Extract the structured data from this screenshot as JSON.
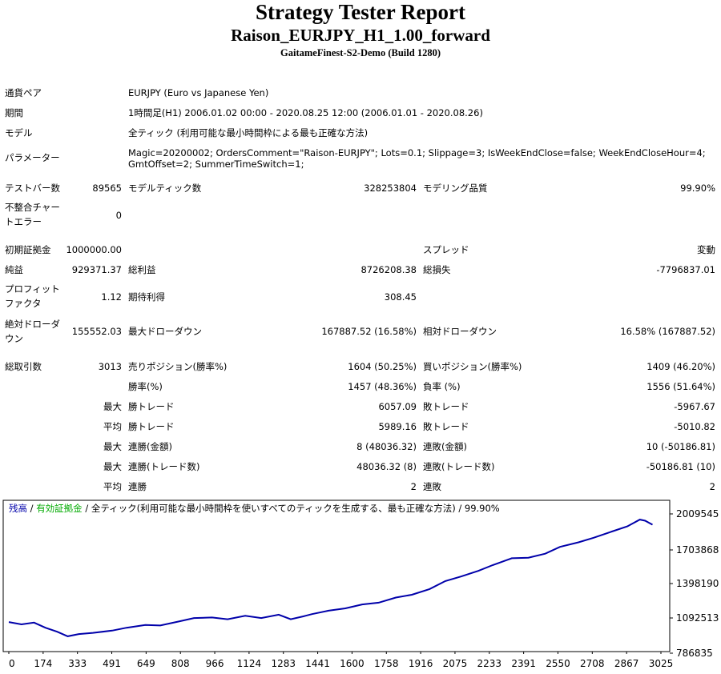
{
  "header": {
    "title": "Strategy Tester Report",
    "subtitle": "Raison_EURJPY_H1_1.00_forward",
    "server": "GaitameFinest-S2-Demo (Build 1280)"
  },
  "info": {
    "symbol_label": "通貨ペア",
    "symbol_value": "EURJPY (Euro vs Japanese Yen)",
    "period_label": "期間",
    "period_value": "1時間足(H1) 2006.01.02 00:00 - 2020.08.25 12:00 (2006.01.01 - 2020.08.26)",
    "model_label": "モデル",
    "model_value": "全ティック (利用可能な最小時間枠による最も正確な方法)",
    "params_label": "パラメーター",
    "params_value": "Magic=20200002; OrdersComment=\"Raison-EURJPY\"; Lots=0.1; Slippage=3; IsWeekEndClose=false; WeekEndCloseHour=4; GmtOffset=2; SummerTimeSwitch=1;"
  },
  "stats": {
    "bars_label": "テストバー数",
    "bars_value": "89565",
    "ticks_label": "モデルティック数",
    "ticks_value": "328253804",
    "quality_label": "モデリング品質",
    "quality_value": "99.90%",
    "mismatch_label_1": "不整合チャー",
    "mismatch_label_2": "トエラー",
    "mismatch_value": "0",
    "deposit_label": "初期証拠金",
    "deposit_value": "1000000.00",
    "spread_label": "スプレッド",
    "spread_value": "変動",
    "net_label": "純益",
    "net_value": "929371.37",
    "gross_profit_label": "総利益",
    "gross_profit_value": "8726208.38",
    "gross_loss_label": "総損失",
    "gross_loss_value": "-7796837.01",
    "pf_label_1": "プロフィット",
    "pf_label_2": "ファクタ",
    "pf_value": "1.12",
    "expected_label": "期待利得",
    "expected_value": "308.45",
    "abs_dd_label_1": "絶対ドローダ",
    "abs_dd_label_2": "ウン",
    "abs_dd_value": "155552.03",
    "max_dd_label": "最大ドローダウン",
    "max_dd_value": "167887.52 (16.58%)",
    "rel_dd_label": "相対ドローダウン",
    "rel_dd_value": "16.58% (167887.52)",
    "trades_label": "総取引数",
    "trades_value": "3013",
    "short_label": "売りポジション(勝率%)",
    "short_value": "1604 (50.25%)",
    "long_label": "買いポジション(勝率%)",
    "long_value": "1409 (46.20%)",
    "win_pct_label": "勝率(%)",
    "win_pct_value": "1457 (48.36%)",
    "loss_pct_label": "負率 (%)",
    "loss_pct_value": "1556 (51.64%)",
    "max_label": "最大",
    "avg_label": "平均",
    "largest_win_label": "勝トレード",
    "largest_win_value": "6057.09",
    "largest_loss_label": "敗トレード",
    "largest_loss_value": "-5967.67",
    "avg_win_label": "勝トレード",
    "avg_win_value": "5989.16",
    "avg_loss_label": "敗トレード",
    "avg_loss_value": "-5010.82",
    "max_cons_wins_label": "連勝(金額)",
    "max_cons_wins_value": "8 (48036.32)",
    "max_cons_losses_label": "連敗(金額)",
    "max_cons_losses_value": "10 (-50186.81)",
    "max_cons_profit_label": "連勝(トレード数)",
    "max_cons_profit_value": "48036.32 (8)",
    "max_cons_loss_label": "連敗(トレード数)",
    "max_cons_loss_value": "-50186.81 (10)",
    "avg_cons_wins_label": "連勝",
    "avg_cons_wins_value": "2",
    "avg_cons_losses_label": "連敗",
    "avg_cons_losses_value": "2"
  },
  "colors": {
    "balance": "#0000aa",
    "equity": "#00aa00",
    "legend_text": "#000000"
  },
  "chart_data": {
    "type": "line",
    "legend": {
      "balance": "残高",
      "sep1": " / ",
      "equity": "有効証拠金",
      "sep2": " / ",
      "rest": "全ティック(利用可能な最小時間枠を使いすべてのティックを生成する、最も正確な方法) / 99.90%"
    },
    "x_ticks": [
      "0",
      "174",
      "333",
      "491",
      "649",
      "808",
      "966",
      "1124",
      "1283",
      "1441",
      "1600",
      "1758",
      "1916",
      "2075",
      "2233",
      "2391",
      "2550",
      "2708",
      "2867",
      "3025"
    ],
    "y_ticks": [
      "2009545",
      "1703868",
      "1398190",
      "1092513",
      "786835"
    ],
    "xlim": [
      0,
      3100
    ],
    "ylim": [
      786835,
      2009545
    ],
    "series": [
      {
        "name": "残高",
        "x": [
          0,
          60,
          120,
          174,
          230,
          280,
          333,
          400,
          491,
          560,
          649,
          720,
          808,
          880,
          966,
          1040,
          1124,
          1200,
          1283,
          1340,
          1400,
          1441,
          1520,
          1600,
          1680,
          1758,
          1840,
          1916,
          2000,
          2075,
          2150,
          2233,
          2300,
          2391,
          2470,
          2550,
          2620,
          2708,
          2780,
          2867,
          2940,
          3000,
          3025,
          3060
        ],
        "y": [
          1060000,
          1040000,
          1055000,
          1010000,
          975000,
          935000,
          955000,
          965000,
          985000,
          1010000,
          1035000,
          1030000,
          1065000,
          1095000,
          1100000,
          1085000,
          1115000,
          1095000,
          1125000,
          1085000,
          1110000,
          1130000,
          1160000,
          1180000,
          1215000,
          1230000,
          1275000,
          1300000,
          1350000,
          1420000,
          1460000,
          1510000,
          1560000,
          1620000,
          1625000,
          1660000,
          1720000,
          1760000,
          1800000,
          1855000,
          1900000,
          1960000,
          1950000,
          1915000
        ]
      }
    ]
  }
}
